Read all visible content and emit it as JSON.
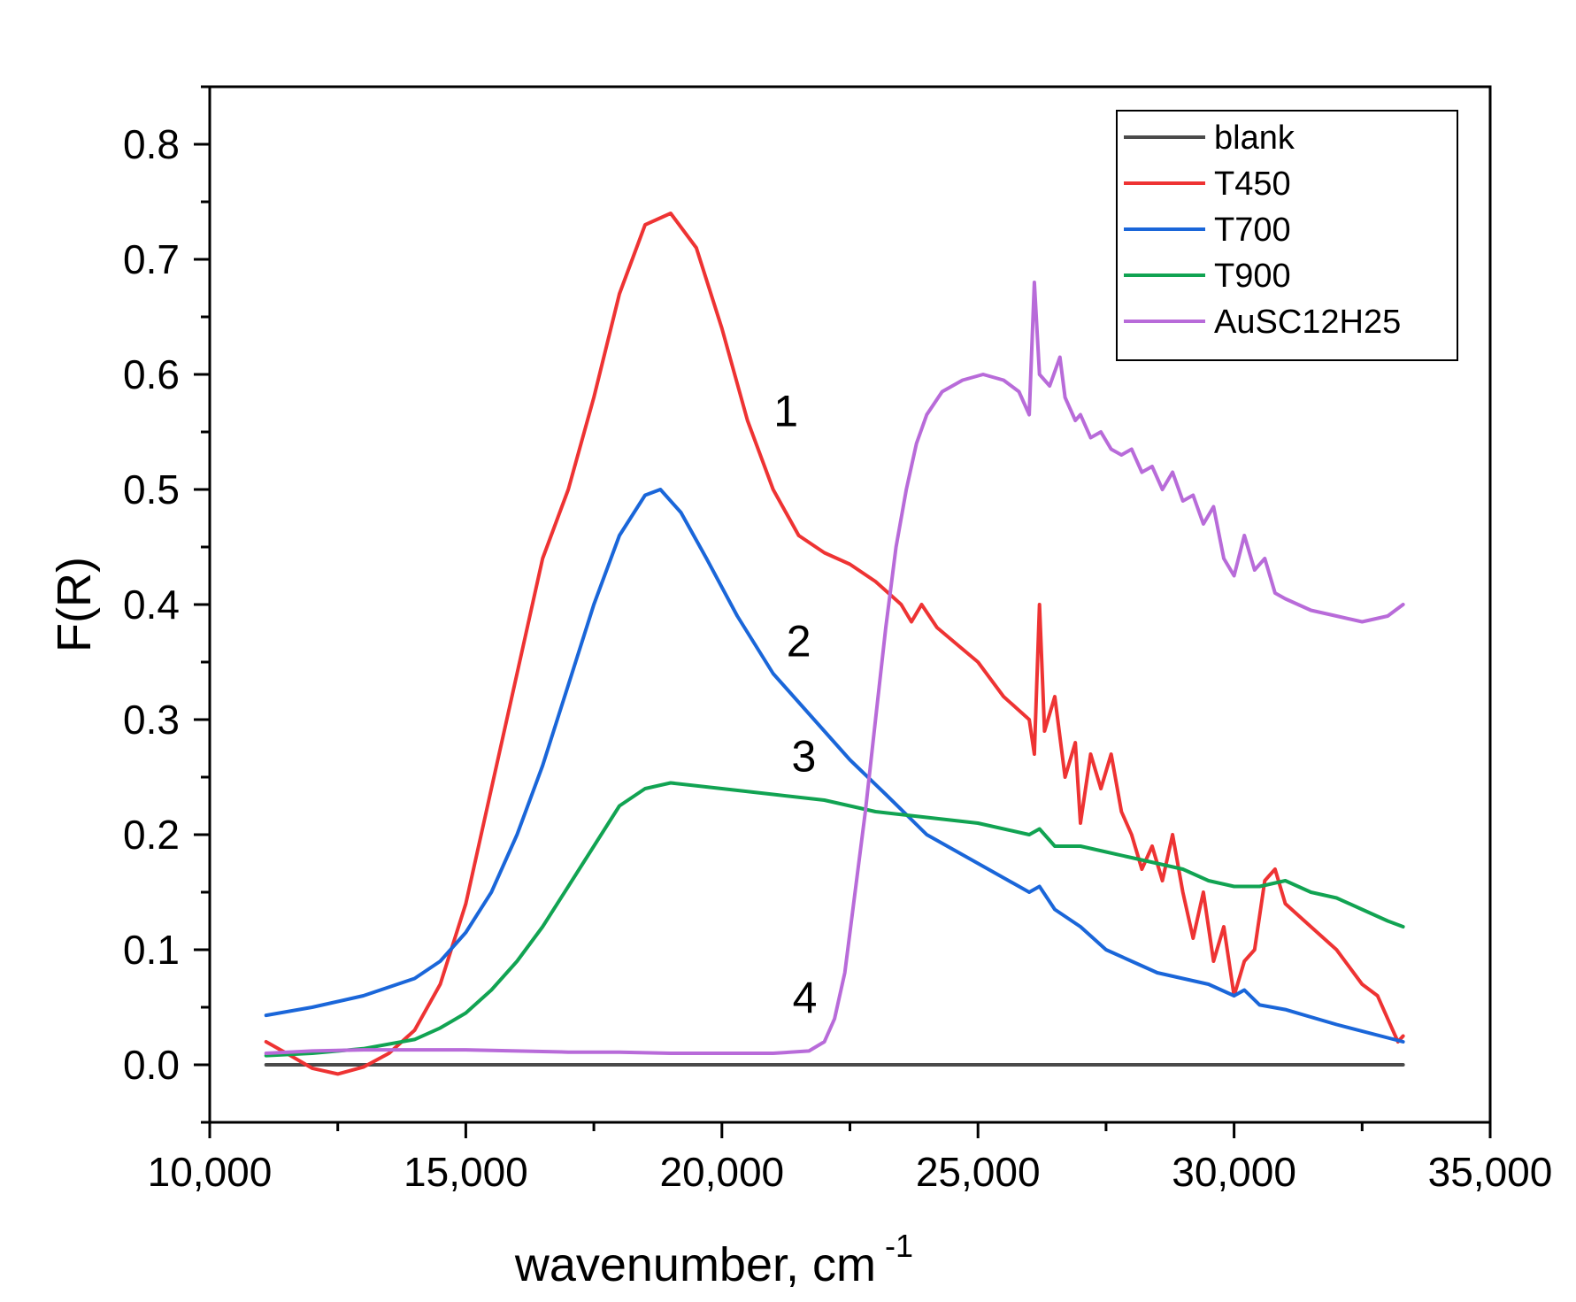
{
  "chart_data": {
    "type": "line",
    "title": "",
    "xlabel": "wavenumber, cm",
    "xlabel_sup": "-1",
    "ylabel": "F(R)",
    "xlim": [
      10000,
      35000
    ],
    "ylim": [
      -0.05,
      0.85
    ],
    "x_ticks": [
      10000,
      15000,
      20000,
      25000,
      30000,
      35000
    ],
    "x_tick_labels": [
      "10,000",
      "15,000",
      "20,000",
      "25,000",
      "30,000",
      "35,000"
    ],
    "y_ticks": [
      0.0,
      0.1,
      0.2,
      0.3,
      0.4,
      0.5,
      0.6,
      0.7,
      0.8
    ],
    "y_tick_labels": [
      "0.0",
      "0.1",
      "0.2",
      "0.3",
      "0.4",
      "0.5",
      "0.6",
      "0.7",
      "0.8"
    ],
    "legend_position": "top-right",
    "series": [
      {
        "name": "blank",
        "color": "#4a4a4a",
        "points": [
          [
            11100,
            0.0
          ],
          [
            33300,
            0.0
          ]
        ]
      },
      {
        "name": "T450",
        "color": "#ee3333",
        "points": [
          [
            11100,
            0.02
          ],
          [
            11500,
            0.01
          ],
          [
            12000,
            -0.003
          ],
          [
            12500,
            -0.008
          ],
          [
            13000,
            -0.002
          ],
          [
            13500,
            0.01
          ],
          [
            14000,
            0.03
          ],
          [
            14500,
            0.07
          ],
          [
            15000,
            0.14
          ],
          [
            15500,
            0.24
          ],
          [
            16000,
            0.34
          ],
          [
            16500,
            0.44
          ],
          [
            17000,
            0.5
          ],
          [
            17500,
            0.58
          ],
          [
            18000,
            0.67
          ],
          [
            18500,
            0.73
          ],
          [
            19000,
            0.74
          ],
          [
            19500,
            0.71
          ],
          [
            20000,
            0.64
          ],
          [
            20500,
            0.56
          ],
          [
            21000,
            0.5
          ],
          [
            21500,
            0.46
          ],
          [
            22000,
            0.445
          ],
          [
            22500,
            0.435
          ],
          [
            23000,
            0.42
          ],
          [
            23500,
            0.4
          ],
          [
            23700,
            0.385
          ],
          [
            23900,
            0.4
          ],
          [
            24200,
            0.38
          ],
          [
            24600,
            0.365
          ],
          [
            25000,
            0.35
          ],
          [
            25500,
            0.32
          ],
          [
            26000,
            0.3
          ],
          [
            26100,
            0.27
          ],
          [
            26200,
            0.4
          ],
          [
            26300,
            0.29
          ],
          [
            26500,
            0.32
          ],
          [
            26700,
            0.25
          ],
          [
            26900,
            0.28
          ],
          [
            27000,
            0.21
          ],
          [
            27200,
            0.27
          ],
          [
            27400,
            0.24
          ],
          [
            27600,
            0.27
          ],
          [
            27800,
            0.22
          ],
          [
            28000,
            0.2
          ],
          [
            28200,
            0.17
          ],
          [
            28400,
            0.19
          ],
          [
            28600,
            0.16
          ],
          [
            28800,
            0.2
          ],
          [
            29000,
            0.15
          ],
          [
            29200,
            0.11
          ],
          [
            29400,
            0.15
          ],
          [
            29600,
            0.09
          ],
          [
            29800,
            0.12
          ],
          [
            30000,
            0.06
          ],
          [
            30200,
            0.09
          ],
          [
            30400,
            0.1
          ],
          [
            30600,
            0.16
          ],
          [
            30800,
            0.17
          ],
          [
            31000,
            0.14
          ],
          [
            31500,
            0.12
          ],
          [
            32000,
            0.1
          ],
          [
            32500,
            0.07
          ],
          [
            32800,
            0.06
          ],
          [
            33000,
            0.04
          ],
          [
            33200,
            0.02
          ],
          [
            33300,
            0.025
          ]
        ]
      },
      {
        "name": "T700",
        "color": "#1a66d9",
        "points": [
          [
            11100,
            0.043
          ],
          [
            12000,
            0.05
          ],
          [
            13000,
            0.06
          ],
          [
            14000,
            0.075
          ],
          [
            14500,
            0.09
          ],
          [
            15000,
            0.115
          ],
          [
            15500,
            0.15
          ],
          [
            16000,
            0.2
          ],
          [
            16500,
            0.26
          ],
          [
            17000,
            0.33
          ],
          [
            17500,
            0.4
          ],
          [
            18000,
            0.46
          ],
          [
            18500,
            0.495
          ],
          [
            18800,
            0.5
          ],
          [
            19200,
            0.48
          ],
          [
            19700,
            0.44
          ],
          [
            20300,
            0.39
          ],
          [
            21000,
            0.34
          ],
          [
            21800,
            0.3
          ],
          [
            22500,
            0.265
          ],
          [
            23200,
            0.235
          ],
          [
            24000,
            0.2
          ],
          [
            25000,
            0.175
          ],
          [
            26000,
            0.15
          ],
          [
            26200,
            0.155
          ],
          [
            26500,
            0.135
          ],
          [
            27000,
            0.12
          ],
          [
            27500,
            0.1
          ],
          [
            28000,
            0.09
          ],
          [
            28500,
            0.08
          ],
          [
            29000,
            0.075
          ],
          [
            29500,
            0.07
          ],
          [
            30000,
            0.06
          ],
          [
            30200,
            0.065
          ],
          [
            30500,
            0.052
          ],
          [
            31000,
            0.048
          ],
          [
            32000,
            0.035
          ],
          [
            33300,
            0.02
          ]
        ]
      },
      {
        "name": "T900",
        "color": "#11a352",
        "points": [
          [
            11100,
            0.008
          ],
          [
            12000,
            0.01
          ],
          [
            13000,
            0.014
          ],
          [
            14000,
            0.022
          ],
          [
            14500,
            0.032
          ],
          [
            15000,
            0.045
          ],
          [
            15500,
            0.065
          ],
          [
            16000,
            0.09
          ],
          [
            16500,
            0.12
          ],
          [
            17000,
            0.155
          ],
          [
            17500,
            0.19
          ],
          [
            18000,
            0.225
          ],
          [
            18500,
            0.24
          ],
          [
            19000,
            0.245
          ],
          [
            20000,
            0.24
          ],
          [
            21000,
            0.235
          ],
          [
            22000,
            0.23
          ],
          [
            23000,
            0.22
          ],
          [
            24000,
            0.215
          ],
          [
            25000,
            0.21
          ],
          [
            26000,
            0.2
          ],
          [
            26200,
            0.205
          ],
          [
            26500,
            0.19
          ],
          [
            27000,
            0.19
          ],
          [
            27500,
            0.185
          ],
          [
            28000,
            0.18
          ],
          [
            28500,
            0.175
          ],
          [
            29000,
            0.17
          ],
          [
            29500,
            0.16
          ],
          [
            30000,
            0.155
          ],
          [
            30500,
            0.155
          ],
          [
            31000,
            0.16
          ],
          [
            31500,
            0.15
          ],
          [
            32000,
            0.145
          ],
          [
            32500,
            0.135
          ],
          [
            33000,
            0.125
          ],
          [
            33300,
            0.12
          ]
        ]
      },
      {
        "name": "AuSC12H25",
        "color": "#b86bd9",
        "points": [
          [
            11100,
            0.01
          ],
          [
            12000,
            0.012
          ],
          [
            13000,
            0.013
          ],
          [
            14000,
            0.013
          ],
          [
            15000,
            0.013
          ],
          [
            16000,
            0.012
          ],
          [
            17000,
            0.011
          ],
          [
            18000,
            0.011
          ],
          [
            19000,
            0.01
          ],
          [
            20000,
            0.01
          ],
          [
            21000,
            0.01
          ],
          [
            21700,
            0.012
          ],
          [
            22000,
            0.02
          ],
          [
            22200,
            0.04
          ],
          [
            22400,
            0.08
          ],
          [
            22600,
            0.15
          ],
          [
            22800,
            0.22
          ],
          [
            23000,
            0.3
          ],
          [
            23200,
            0.38
          ],
          [
            23400,
            0.45
          ],
          [
            23600,
            0.5
          ],
          [
            23800,
            0.54
          ],
          [
            24000,
            0.565
          ],
          [
            24300,
            0.585
          ],
          [
            24700,
            0.595
          ],
          [
            25100,
            0.6
          ],
          [
            25500,
            0.595
          ],
          [
            25800,
            0.585
          ],
          [
            26000,
            0.565
          ],
          [
            26100,
            0.68
          ],
          [
            26200,
            0.6
          ],
          [
            26400,
            0.59
          ],
          [
            26600,
            0.615
          ],
          [
            26700,
            0.58
          ],
          [
            26900,
            0.56
          ],
          [
            27000,
            0.565
          ],
          [
            27200,
            0.545
          ],
          [
            27400,
            0.55
          ],
          [
            27600,
            0.535
          ],
          [
            27800,
            0.53
          ],
          [
            28000,
            0.535
          ],
          [
            28200,
            0.515
          ],
          [
            28400,
            0.52
          ],
          [
            28600,
            0.5
          ],
          [
            28800,
            0.515
          ],
          [
            29000,
            0.49
          ],
          [
            29200,
            0.495
          ],
          [
            29400,
            0.47
          ],
          [
            29600,
            0.485
          ],
          [
            29800,
            0.44
          ],
          [
            30000,
            0.425
          ],
          [
            30200,
            0.46
          ],
          [
            30400,
            0.43
          ],
          [
            30600,
            0.44
          ],
          [
            30800,
            0.41
          ],
          [
            31000,
            0.405
          ],
          [
            31500,
            0.395
          ],
          [
            32000,
            0.39
          ],
          [
            32500,
            0.385
          ],
          [
            33000,
            0.39
          ],
          [
            33300,
            0.4
          ]
        ]
      }
    ],
    "annotations": [
      {
        "text": "1",
        "x": 21250,
        "y": 0.555
      },
      {
        "text": "2",
        "x": 21500,
        "y": 0.355
      },
      {
        "text": "3",
        "x": 21600,
        "y": 0.255
      },
      {
        "text": "4",
        "x": 21620,
        "y": 0.045
      }
    ]
  }
}
